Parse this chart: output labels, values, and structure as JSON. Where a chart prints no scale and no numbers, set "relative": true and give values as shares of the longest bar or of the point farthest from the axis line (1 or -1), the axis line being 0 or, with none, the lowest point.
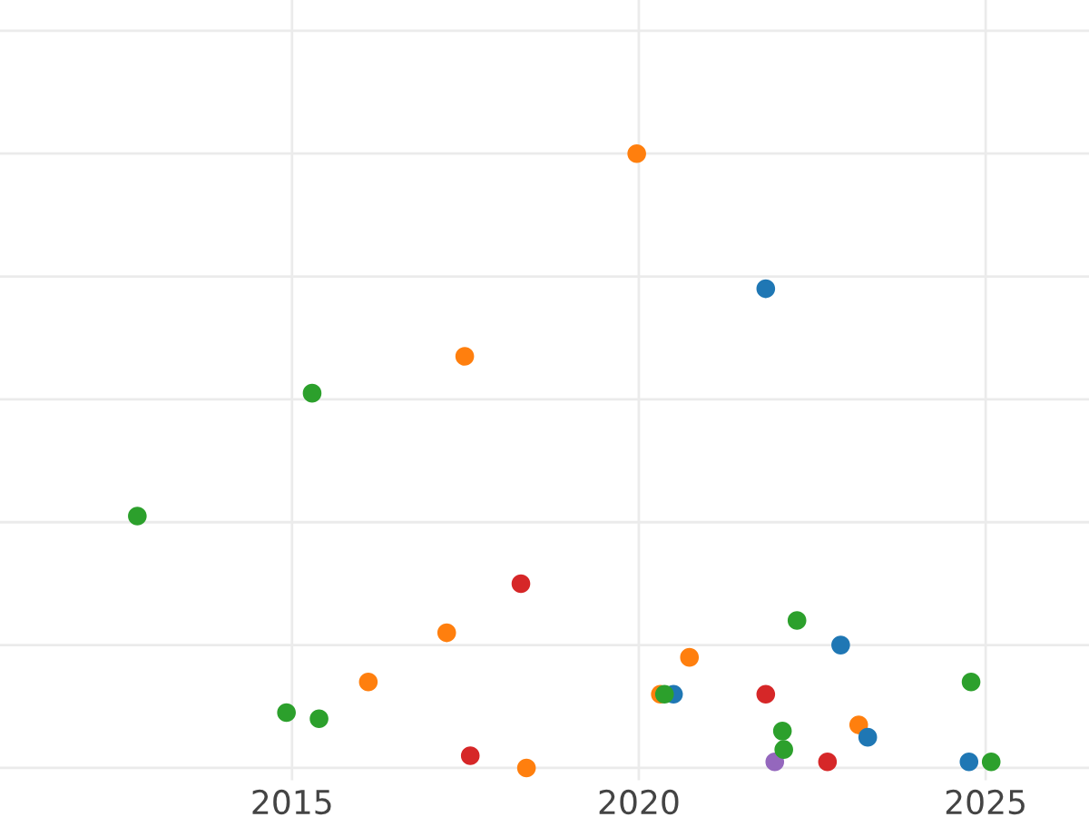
{
  "chart_data": {
    "type": "scatter",
    "relative": true,
    "xlim": [
      2010.79,
      2026.49
    ],
    "xticks": [
      2015,
      2020,
      2025
    ],
    "grid": true,
    "tick_labels": "x",
    "marker": "circle",
    "series": [
      {
        "color": "#ff7f0e",
        "x": [
          2019.97,
          2017.49,
          2017.23,
          2016.1,
          2018.38,
          2020.31,
          2020.73,
          2023.17
        ],
        "values": [
          1.0,
          0.67,
          0.22,
          0.14,
          0,
          0.12,
          0.18,
          0.07
        ]
      },
      {
        "color": "#1f77b4",
        "x": [
          2021.83,
          2022.91,
          2020.5,
          2023.3,
          2024.76
        ],
        "values": [
          0.78,
          0.2,
          0.12,
          0.05,
          0.01
        ]
      },
      {
        "color": "#d62728",
        "x": [
          2018.3,
          2017.57,
          2021.83,
          2022.72
        ],
        "values": [
          0.3,
          0.02,
          0.12,
          0.01
        ]
      },
      {
        "color": "#9467bd",
        "x": [
          2021.96
        ],
        "values": [
          0.01
        ]
      },
      {
        "color": "#2ca02c",
        "x": [
          2012.77,
          2015.29,
          2014.92,
          2015.39,
          2022.28,
          2020.37,
          2022.07,
          2022.09,
          2024.79,
          2025.08
        ],
        "values": [
          0.41,
          0.61,
          0.09,
          0.08,
          0.24,
          0.12,
          0.06,
          0.03,
          0.14,
          0.01
        ]
      }
    ]
  }
}
